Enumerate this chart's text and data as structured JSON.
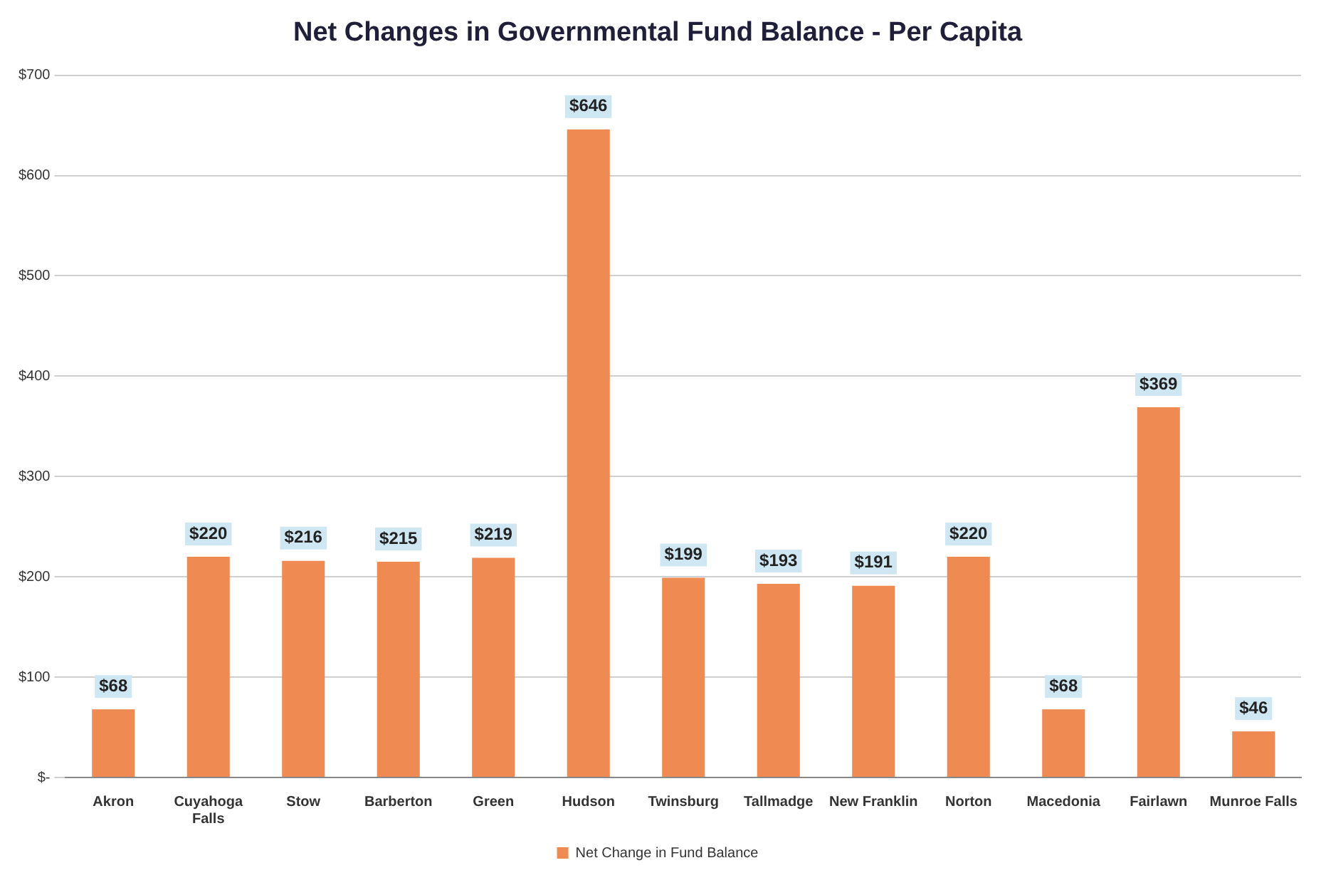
{
  "chart_data": {
    "type": "bar",
    "title": "Net Changes in Governmental Fund Balance - Per Capita",
    "categories": [
      "Akron",
      "Cuyahoga Falls",
      "Stow",
      "Barberton",
      "Green",
      "Hudson",
      "Twinsburg",
      "Tallmadge",
      "New Franklin",
      "Norton",
      "Macedonia",
      "Fairlawn",
      "Munroe Falls"
    ],
    "series": [
      {
        "name": "Net Change in Fund Balance",
        "color": "#ef8a52",
        "values": [
          68,
          220,
          216,
          215,
          219,
          646,
          199,
          193,
          191,
          220,
          68,
          369,
          46
        ],
        "value_labels": [
          "$68",
          "$220",
          "$216",
          "$215",
          "$219",
          "$646",
          "$199",
          "$193",
          "$191",
          "$220",
          "$68",
          "$369",
          "$46"
        ]
      }
    ],
    "ylim": [
      0,
      700
    ],
    "yticks": [
      {
        "value": 0,
        "label": "$-"
      },
      {
        "value": 100,
        "label": "$100"
      },
      {
        "value": 200,
        "label": "$200"
      },
      {
        "value": 300,
        "label": "$300"
      },
      {
        "value": 400,
        "label": "$400"
      },
      {
        "value": 500,
        "label": "$500"
      },
      {
        "value": 600,
        "label": "$600"
      },
      {
        "value": 700,
        "label": "$700"
      }
    ],
    "grid": "y",
    "legend": "bottom"
  }
}
